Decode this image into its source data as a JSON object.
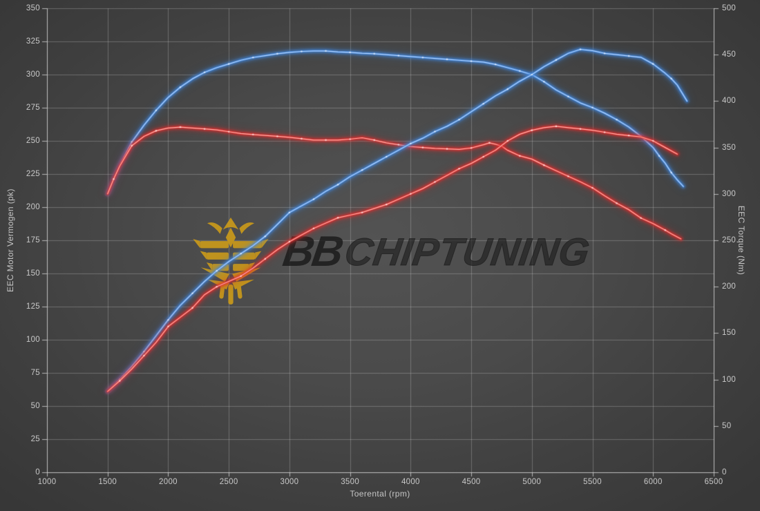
{
  "chart_data": {
    "type": "line",
    "title": "",
    "legend": "none",
    "grid": true,
    "x_axis": {
      "label": "Toerental (rpm)",
      "min": 1000,
      "max": 6500,
      "ticks": [
        1000,
        1500,
        2000,
        2500,
        3000,
        3500,
        4000,
        4500,
        5000,
        5500,
        6000,
        6500
      ]
    },
    "y_left": {
      "label": "EEC Motor Vermogen (pk)",
      "min": 0,
      "max": 350,
      "ticks": [
        0,
        25,
        50,
        75,
        100,
        125,
        150,
        175,
        200,
        225,
        250,
        275,
        300,
        325,
        350
      ]
    },
    "y_right": {
      "label": "EEC Torque (Nm)",
      "min": 0,
      "max": 500,
      "ticks": [
        0,
        50,
        100,
        150,
        200,
        250,
        300,
        350,
        400,
        450,
        500
      ]
    },
    "series": [
      {
        "name": "torque-blue",
        "axis": "right",
        "color": "#3f86dc",
        "highlight": "#cfe2ff",
        "points": [
          [
            1500,
            300
          ],
          [
            1550,
            316
          ],
          [
            1600,
            331
          ],
          [
            1700,
            356
          ],
          [
            1800,
            374
          ],
          [
            1900,
            390
          ],
          [
            2000,
            404
          ],
          [
            2100,
            415
          ],
          [
            2200,
            424
          ],
          [
            2300,
            431
          ],
          [
            2400,
            436
          ],
          [
            2500,
            440
          ],
          [
            2600,
            444
          ],
          [
            2700,
            447
          ],
          [
            2800,
            449
          ],
          [
            2900,
            451
          ],
          [
            3000,
            452.5
          ],
          [
            3100,
            453.5
          ],
          [
            3200,
            454
          ],
          [
            3300,
            454
          ],
          [
            3400,
            453
          ],
          [
            3500,
            452.5
          ],
          [
            3600,
            451.5
          ],
          [
            3700,
            451
          ],
          [
            3800,
            450
          ],
          [
            3900,
            449
          ],
          [
            4000,
            448
          ],
          [
            4100,
            447
          ],
          [
            4200,
            446
          ],
          [
            4300,
            445
          ],
          [
            4400,
            444
          ],
          [
            4500,
            443
          ],
          [
            4600,
            442
          ],
          [
            4700,
            439.5
          ],
          [
            4800,
            436
          ],
          [
            4900,
            432.5
          ],
          [
            5000,
            428.5
          ],
          [
            5100,
            421
          ],
          [
            5200,
            412
          ],
          [
            5300,
            405
          ],
          [
            5400,
            398
          ],
          [
            5500,
            393
          ],
          [
            5600,
            387
          ],
          [
            5700,
            380
          ],
          [
            5800,
            372
          ],
          [
            5900,
            362
          ],
          [
            6000,
            350
          ],
          [
            6050,
            341
          ],
          [
            6100,
            333
          ],
          [
            6150,
            323
          ],
          [
            6200,
            315
          ],
          [
            6250,
            308
          ]
        ]
      },
      {
        "name": "torque-red",
        "axis": "right",
        "color": "#e02b2b",
        "highlight": "#ffd2c9",
        "points": [
          [
            1500,
            300
          ],
          [
            1550,
            316
          ],
          [
            1600,
            330
          ],
          [
            1700,
            352
          ],
          [
            1800,
            362
          ],
          [
            1900,
            368
          ],
          [
            2000,
            371
          ],
          [
            2100,
            372
          ],
          [
            2200,
            371
          ],
          [
            2300,
            370
          ],
          [
            2400,
            369
          ],
          [
            2500,
            367
          ],
          [
            2600,
            365
          ],
          [
            2700,
            364
          ],
          [
            2800,
            363
          ],
          [
            2900,
            362
          ],
          [
            3000,
            361
          ],
          [
            3100,
            359.5
          ],
          [
            3200,
            358
          ],
          [
            3300,
            358
          ],
          [
            3400,
            358
          ],
          [
            3500,
            359
          ],
          [
            3600,
            360.5
          ],
          [
            3700,
            358
          ],
          [
            3800,
            355
          ],
          [
            3900,
            353
          ],
          [
            4000,
            351
          ],
          [
            4100,
            350
          ],
          [
            4200,
            349
          ],
          [
            4300,
            348.5
          ],
          [
            4400,
            348
          ],
          [
            4500,
            349.5
          ],
          [
            4600,
            353
          ],
          [
            4650,
            355
          ],
          [
            4700,
            353.5
          ],
          [
            4750,
            351.5
          ],
          [
            4800,
            347
          ],
          [
            4900,
            341
          ],
          [
            5000,
            337.5
          ],
          [
            5100,
            331
          ],
          [
            5200,
            325
          ],
          [
            5300,
            319
          ],
          [
            5400,
            313
          ],
          [
            5500,
            306.5
          ],
          [
            5600,
            298
          ],
          [
            5700,
            290
          ],
          [
            5800,
            283
          ],
          [
            5900,
            274
          ],
          [
            6000,
            268
          ],
          [
            6100,
            261
          ],
          [
            6150,
            257
          ],
          [
            6230,
            251.5
          ]
        ]
      },
      {
        "name": "power-blue",
        "axis": "left",
        "color": "#3f86dc",
        "highlight": "#cfe2ff",
        "points": [
          [
            1500,
            61
          ],
          [
            1600,
            70
          ],
          [
            1700,
            80
          ],
          [
            1800,
            91
          ],
          [
            1900,
            103
          ],
          [
            2000,
            115
          ],
          [
            2100,
            126
          ],
          [
            2200,
            135
          ],
          [
            2300,
            144
          ],
          [
            2400,
            152
          ],
          [
            2500,
            159
          ],
          [
            2600,
            165
          ],
          [
            2700,
            171
          ],
          [
            2800,
            178
          ],
          [
            2900,
            187
          ],
          [
            3000,
            196
          ],
          [
            3100,
            201
          ],
          [
            3200,
            206
          ],
          [
            3300,
            212
          ],
          [
            3400,
            217
          ],
          [
            3500,
            223
          ],
          [
            3600,
            228
          ],
          [
            3700,
            233
          ],
          [
            3800,
            238
          ],
          [
            3900,
            243
          ],
          [
            4000,
            248
          ],
          [
            4100,
            252
          ],
          [
            4200,
            257
          ],
          [
            4300,
            261
          ],
          [
            4400,
            266
          ],
          [
            4500,
            272
          ],
          [
            4600,
            278
          ],
          [
            4700,
            284
          ],
          [
            4800,
            289
          ],
          [
            4900,
            295
          ],
          [
            5000,
            300
          ],
          [
            5100,
            306
          ],
          [
            5200,
            311
          ],
          [
            5300,
            316
          ],
          [
            5400,
            319
          ],
          [
            5500,
            318
          ],
          [
            5600,
            316
          ],
          [
            5700,
            315
          ],
          [
            5800,
            314
          ],
          [
            5900,
            313
          ],
          [
            6000,
            308
          ],
          [
            6100,
            301
          ],
          [
            6150,
            297
          ],
          [
            6200,
            292
          ],
          [
            6280,
            280
          ]
        ]
      },
      {
        "name": "power-red",
        "axis": "left",
        "color": "#e02b2b",
        "highlight": "#ffd2c9",
        "points": [
          [
            1500,
            61
          ],
          [
            1600,
            69
          ],
          [
            1700,
            78
          ],
          [
            1800,
            88
          ],
          [
            1900,
            98
          ],
          [
            2000,
            110
          ],
          [
            2100,
            117
          ],
          [
            2200,
            124
          ],
          [
            2300,
            134
          ],
          [
            2400,
            140
          ],
          [
            2500,
            144
          ],
          [
            2600,
            148
          ],
          [
            2700,
            154
          ],
          [
            2800,
            161
          ],
          [
            2900,
            168
          ],
          [
            3000,
            174
          ],
          [
            3100,
            179
          ],
          [
            3200,
            184
          ],
          [
            3300,
            188
          ],
          [
            3400,
            192
          ],
          [
            3500,
            194
          ],
          [
            3600,
            196
          ],
          [
            3700,
            199
          ],
          [
            3800,
            202
          ],
          [
            3900,
            206
          ],
          [
            4000,
            210
          ],
          [
            4100,
            214
          ],
          [
            4200,
            219
          ],
          [
            4300,
            224
          ],
          [
            4400,
            229
          ],
          [
            4500,
            233
          ],
          [
            4600,
            238
          ],
          [
            4700,
            243
          ],
          [
            4800,
            250
          ],
          [
            4900,
            255
          ],
          [
            5000,
            258
          ],
          [
            5100,
            260
          ],
          [
            5200,
            261
          ],
          [
            5300,
            260
          ],
          [
            5400,
            259
          ],
          [
            5500,
            258
          ],
          [
            5600,
            256.5
          ],
          [
            5700,
            255
          ],
          [
            5800,
            254
          ],
          [
            5900,
            253
          ],
          [
            6000,
            250
          ],
          [
            6100,
            245
          ],
          [
            6200,
            240
          ]
        ]
      }
    ]
  },
  "watermark": {
    "brand_bold": "BB",
    "brand_rest": "CHIPTUNING"
  },
  "colors": {
    "grid": "#cdcdcd",
    "axis": "#dedede",
    "tick_text": "#c9c9c9",
    "curve_blue": "#3f86dc",
    "curve_red": "#e02b2b",
    "logo_gold": "#c9991b",
    "logo_text": "#262626"
  }
}
